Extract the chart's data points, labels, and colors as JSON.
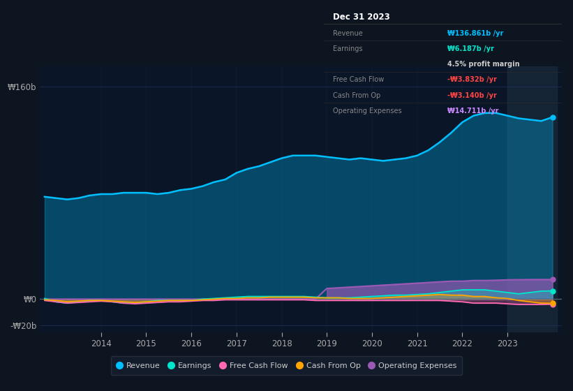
{
  "bg_color": "#0d1520",
  "plot_bg_color": "#0a1628",
  "chart_bg_highlight": "#152035",
  "grid_color": "#1e3050",
  "x_years": [
    2012.75,
    2013.0,
    2013.25,
    2013.5,
    2013.75,
    2014.0,
    2014.25,
    2014.5,
    2014.75,
    2015.0,
    2015.25,
    2015.5,
    2015.75,
    2016.0,
    2016.25,
    2016.5,
    2016.75,
    2017.0,
    2017.25,
    2017.5,
    2017.75,
    2018.0,
    2018.25,
    2018.5,
    2018.75,
    2019.0,
    2019.25,
    2019.5,
    2019.75,
    2020.0,
    2020.25,
    2020.5,
    2020.75,
    2021.0,
    2021.25,
    2021.5,
    2021.75,
    2022.0,
    2022.25,
    2022.5,
    2022.75,
    2023.0,
    2023.25,
    2023.5,
    2023.75,
    2024.0
  ],
  "revenue": [
    77,
    76,
    75,
    76,
    78,
    79,
    79,
    80,
    80,
    80,
    79,
    80,
    82,
    83,
    85,
    88,
    90,
    95,
    98,
    100,
    103,
    106,
    108,
    108,
    108,
    107,
    106,
    105,
    106,
    105,
    104,
    105,
    106,
    108,
    112,
    118,
    125,
    133,
    138,
    140,
    140,
    138,
    136,
    135,
    134,
    136.861
  ],
  "earnings": [
    0.5,
    -2,
    -3,
    -2,
    -1,
    -1,
    -2,
    -3,
    -3,
    -2,
    -1,
    -1,
    -1,
    -1,
    0,
    0.5,
    1,
    1.5,
    2,
    2,
    2,
    2,
    2,
    2,
    1.5,
    1,
    1,
    1,
    1.5,
    2,
    2.5,
    3,
    3,
    3.5,
    4,
    5,
    6,
    7,
    7,
    7,
    6,
    5,
    4,
    5,
    6,
    6.187
  ],
  "free_cash_flow": [
    -1,
    -2,
    -3,
    -2.5,
    -2,
    -1.5,
    -2,
    -3,
    -3.5,
    -3,
    -2.5,
    -2,
    -2,
    -1.5,
    -1,
    -1,
    -0.5,
    -0.5,
    -0.5,
    -0.5,
    -0.5,
    -0.5,
    -0.5,
    -0.5,
    -1,
    -1,
    -1,
    -1,
    -1,
    -1,
    -1,
    -1,
    -1,
    -1,
    -1,
    -1,
    -1.5,
    -2,
    -3,
    -3,
    -3,
    -3.5,
    -4,
    -4,
    -4,
    -3.832
  ],
  "cash_from_op": [
    -0.5,
    -1,
    -2,
    -1.5,
    -1,
    -1,
    -1.5,
    -2,
    -2.5,
    -2,
    -1.5,
    -1,
    -1,
    -1,
    -0.5,
    0,
    0.5,
    0.5,
    1,
    1,
    1.5,
    1.5,
    1.5,
    1.5,
    1,
    1,
    1,
    0.5,
    0.5,
    0.5,
    1,
    1.5,
    2,
    2.5,
    3,
    3.5,
    3,
    3,
    2,
    2,
    1,
    0.5,
    -1,
    -2,
    -3,
    -3.14
  ],
  "operating_expenses": [
    0,
    0,
    0,
    0,
    0,
    0,
    0,
    0,
    0,
    0,
    0,
    0,
    0,
    0,
    0,
    0,
    0,
    0,
    0,
    0,
    0,
    0,
    0,
    0,
    0,
    8,
    8.5,
    9,
    9.5,
    10,
    10.5,
    11,
    11.5,
    12,
    12.5,
    13,
    13.5,
    13.5,
    14,
    14,
    14.2,
    14.5,
    14.6,
    14.7,
    14.7,
    14.711
  ],
  "revenue_color": "#00bfff",
  "earnings_color": "#00e5cc",
  "free_cash_flow_color": "#ff69b4",
  "cash_from_op_color": "#ffa500",
  "operating_expenses_color": "#9b59b6",
  "ylim": [
    -25,
    175
  ],
  "yticks": [
    -20,
    0,
    160
  ],
  "ytick_labels": [
    "-₩20b",
    "₩0",
    "₩160b"
  ],
  "xtick_years": [
    2014,
    2015,
    2016,
    2017,
    2018,
    2019,
    2020,
    2021,
    2022,
    2023
  ],
  "tooltip_title": "Dec 31 2023",
  "tooltip_data": [
    {
      "label": "Revenue",
      "value": "₩136.861b /yr",
      "color": "#00bfff"
    },
    {
      "label": "Earnings",
      "value": "₩6.187b /yr",
      "color": "#00e5cc"
    },
    {
      "label": "",
      "value": "4.5% profit margin",
      "color": "#cccccc"
    },
    {
      "label": "Free Cash Flow",
      "value": "-₩3.832b /yr",
      "color": "#ff4444"
    },
    {
      "label": "Cash From Op",
      "value": "-₩3.140b /yr",
      "color": "#ff4444"
    },
    {
      "label": "Operating Expenses",
      "value": "₩14.711b /yr",
      "color": "#cc88ff"
    }
  ],
  "legend_items": [
    {
      "label": "Revenue",
      "color": "#00bfff"
    },
    {
      "label": "Earnings",
      "color": "#00e5cc"
    },
    {
      "label": "Free Cash Flow",
      "color": "#ff69b4"
    },
    {
      "label": "Cash From Op",
      "color": "#ffa500"
    },
    {
      "label": "Operating Expenses",
      "color": "#9b59b6"
    }
  ]
}
